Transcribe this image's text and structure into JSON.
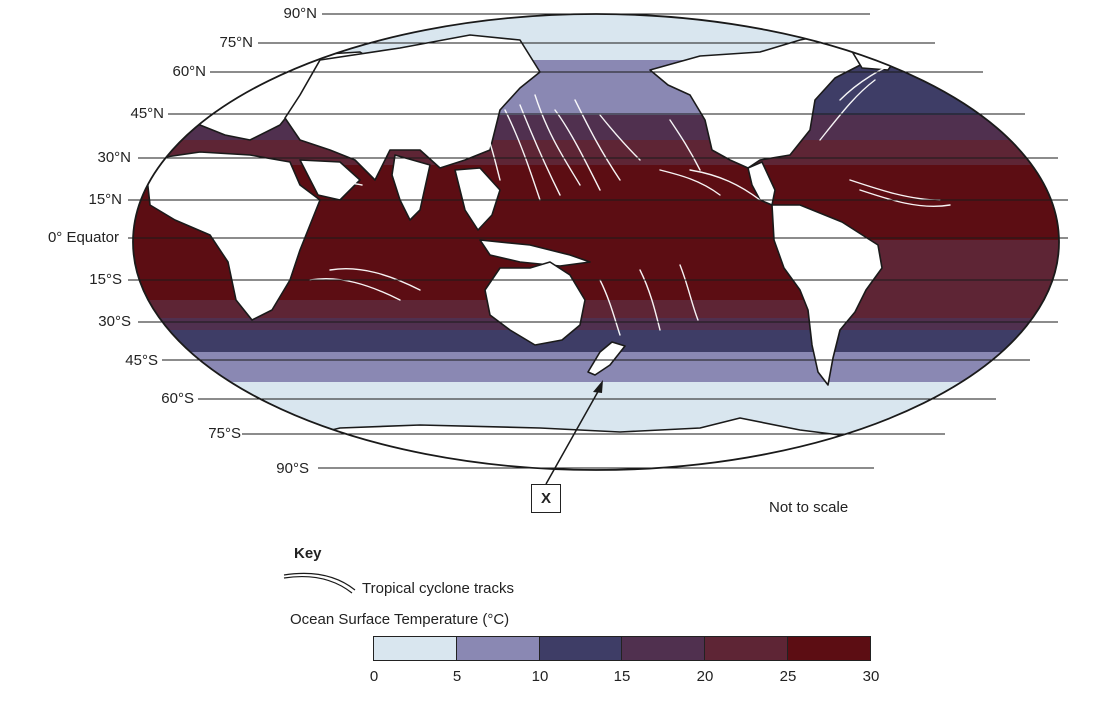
{
  "map": {
    "latitude_labels": [
      "90°N",
      "75°N",
      "60°N",
      "45°N",
      "30°N",
      "15°N",
      "0° Equator",
      "15°S",
      "30°S",
      "45°S",
      "60°S",
      "75°S",
      "90°S"
    ],
    "note": "Not to scale",
    "marker_label": "X"
  },
  "key": {
    "title": "Key",
    "tracks_label": "Tropical cyclone tracks",
    "sst_label": "Ocean Surface Temperature (°C)",
    "scale_ticks": [
      "0",
      "5",
      "10",
      "15",
      "20",
      "25",
      "30"
    ],
    "colors": {
      "0-5": "#d9e6ef",
      "5-10": "#8a88b3",
      "10-15": "#3e3d66",
      "15-20": "#50304f",
      "20-25": "#5e2535",
      "25-30": "#5c0d13",
      "land": "#ffffff",
      "outline": "#1a1a1a"
    }
  }
}
